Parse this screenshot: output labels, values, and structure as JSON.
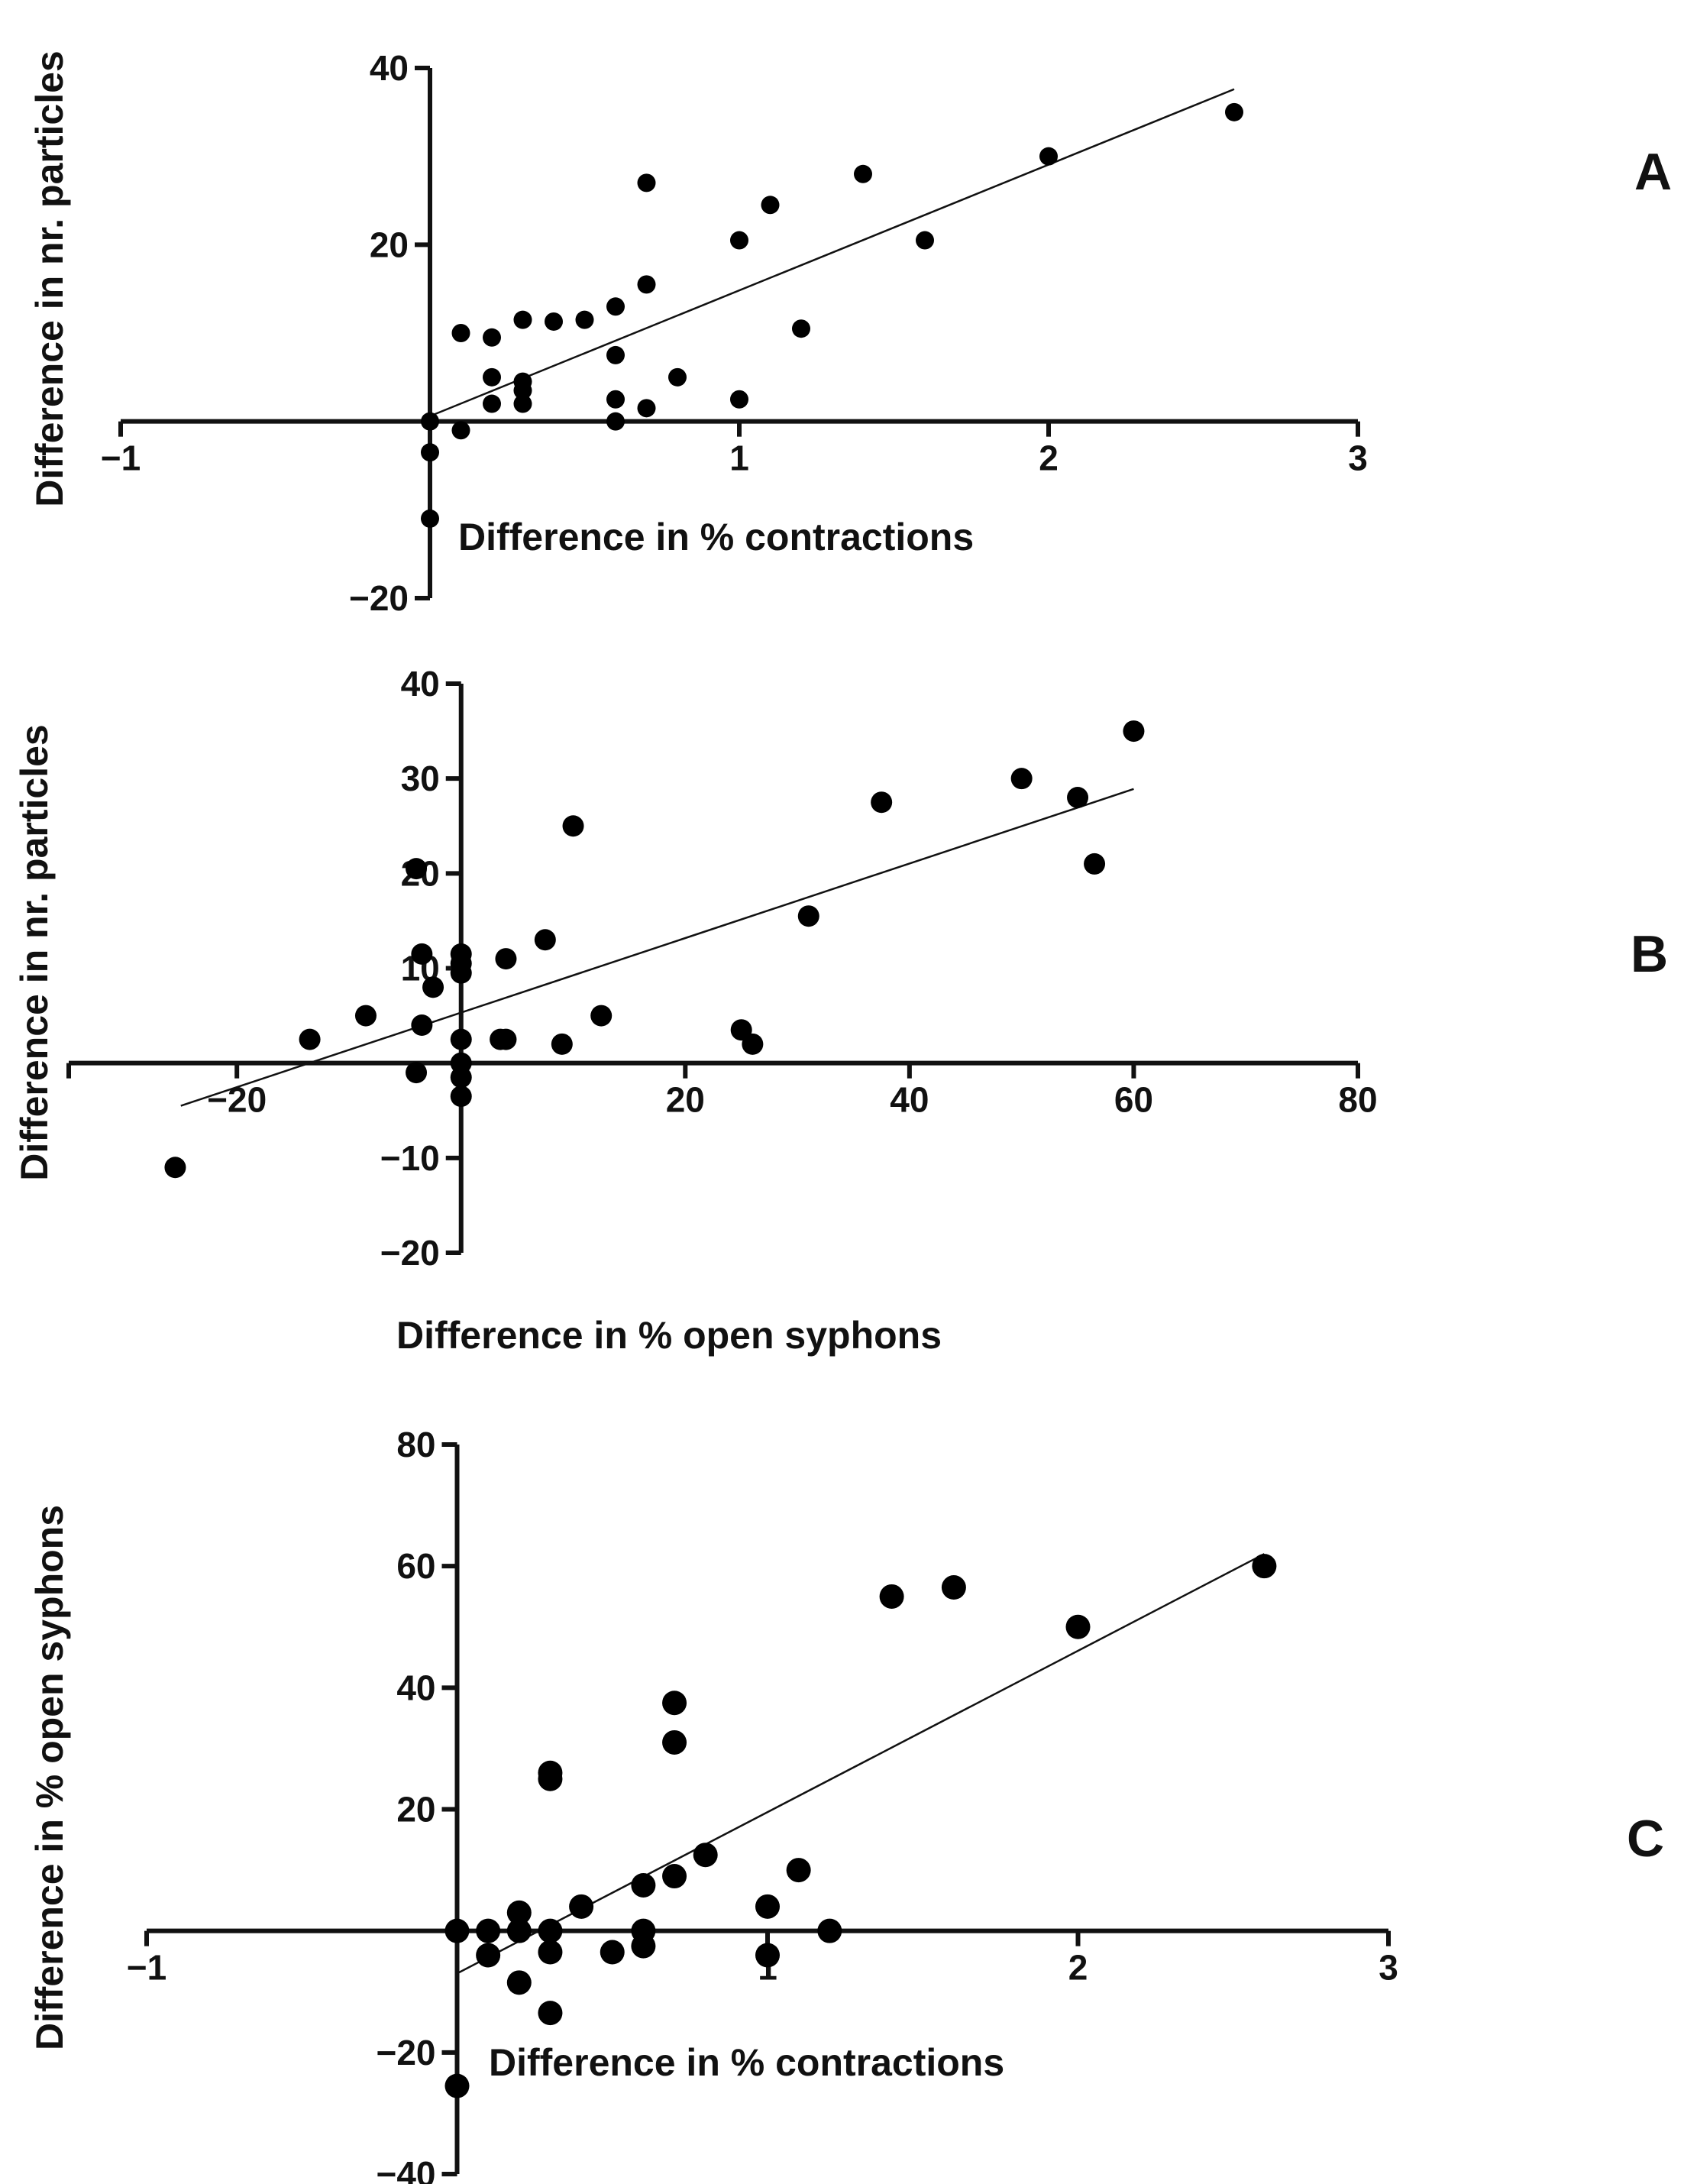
{
  "chart_data": [
    {
      "panel": "A",
      "type": "scatter",
      "xlabel": "Difference in % contractions",
      "ylabel": "Difference in nr. particles",
      "xlim": [
        -1,
        3
      ],
      "ylim": [
        -20,
        40
      ],
      "xticks": [
        -1,
        1,
        2,
        3
      ],
      "yticks": [
        -20,
        20,
        40
      ],
      "xtick_labels": [
        "−1",
        "1",
        "2",
        "3"
      ],
      "ytick_labels": [
        "−20",
        "20",
        "40"
      ],
      "points": [
        [
          0,
          0
        ],
        [
          0,
          -3.5
        ],
        [
          0,
          -11
        ],
        [
          0.1,
          10
        ],
        [
          0.1,
          -1
        ],
        [
          0.2,
          9.5
        ],
        [
          0.2,
          5
        ],
        [
          0.2,
          2
        ],
        [
          0.3,
          11.5
        ],
        [
          0.3,
          4.5
        ],
        [
          0.3,
          3.5
        ],
        [
          0.3,
          2
        ],
        [
          0.4,
          11.3
        ],
        [
          0.5,
          11.5
        ],
        [
          0.6,
          13
        ],
        [
          0.6,
          7.5
        ],
        [
          0.6,
          2.5
        ],
        [
          0.6,
          0
        ],
        [
          0.7,
          27
        ],
        [
          0.7,
          15.5
        ],
        [
          0.7,
          1.5
        ],
        [
          0.8,
          5
        ],
        [
          1.0,
          20.5
        ],
        [
          1.0,
          2.5
        ],
        [
          1.1,
          24.5
        ],
        [
          1.2,
          10.5
        ],
        [
          1.4,
          28
        ],
        [
          1.6,
          20.5
        ],
        [
          2.0,
          30
        ],
        [
          2.6,
          35
        ]
      ],
      "fit": {
        "x": [
          0,
          2.6
        ],
        "y": [
          0.6,
          37.6
        ]
      }
    },
    {
      "panel": "B",
      "type": "scatter",
      "xlabel": "Difference in % open syphons",
      "ylabel": "Difference in nr. particles",
      "xlim": [
        -35,
        80
      ],
      "ylim": [
        -20,
        40
      ],
      "xticks": [
        -20,
        20,
        40,
        60,
        80
      ],
      "yticks": [
        -20,
        -10,
        10,
        20,
        30,
        40
      ],
      "xtick_labels": [
        "−20",
        "20",
        "40",
        "60",
        "80"
      ],
      "ytick_labels": [
        "−20",
        "−10",
        "10",
        "20",
        "30",
        "40"
      ],
      "points": [
        [
          -25.5,
          -11
        ],
        [
          -13.5,
          2.5
        ],
        [
          -8.5,
          5
        ],
        [
          -4,
          20.5
        ],
        [
          -4,
          -1
        ],
        [
          -3.5,
          11.5
        ],
        [
          -3.5,
          4
        ],
        [
          -2.5,
          8
        ],
        [
          0,
          11.5
        ],
        [
          0,
          10.5
        ],
        [
          0,
          9.5
        ],
        [
          0,
          2.5
        ],
        [
          0,
          0
        ],
        [
          0,
          -1.5
        ],
        [
          0,
          -3.5
        ],
        [
          3.5,
          2.5
        ],
        [
          4,
          2.5
        ],
        [
          4,
          11
        ],
        [
          7.5,
          13
        ],
        [
          9,
          2
        ],
        [
          10,
          25
        ],
        [
          12.5,
          5
        ],
        [
          25,
          3.5
        ],
        [
          26,
          2
        ],
        [
          31,
          15.5
        ],
        [
          37.5,
          27.5
        ],
        [
          50,
          30
        ],
        [
          55,
          28
        ],
        [
          56.5,
          21
        ],
        [
          60,
          35
        ]
      ],
      "fit": {
        "x": [
          -25,
          60
        ],
        "y": [
          -4.5,
          28.9
        ]
      }
    },
    {
      "panel": "C",
      "type": "scatter",
      "xlabel": "Difference in % contractions",
      "ylabel": "Difference in % open syphons",
      "xlim": [
        -1,
        3
      ],
      "ylim": [
        -40,
        80
      ],
      "xticks": [
        -1,
        1,
        2,
        3
      ],
      "yticks": [
        -40,
        -20,
        20,
        40,
        60,
        80
      ],
      "xtick_labels": [
        "−1",
        "1",
        "2",
        "3"
      ],
      "ytick_labels": [
        "−40",
        "−20",
        "20",
        "40",
        "60",
        "80"
      ],
      "points": [
        [
          0,
          0
        ],
        [
          0,
          -25.5
        ],
        [
          0.1,
          0
        ],
        [
          0.1,
          -4
        ],
        [
          0.2,
          3
        ],
        [
          0.2,
          0
        ],
        [
          0.2,
          -8.5
        ],
        [
          0.3,
          25
        ],
        [
          0.3,
          26
        ],
        [
          0.3,
          0
        ],
        [
          0.3,
          -3.5
        ],
        [
          0.3,
          -13.5
        ],
        [
          0.4,
          4
        ],
        [
          0.5,
          -3.5
        ],
        [
          0.6,
          7.5
        ],
        [
          0.6,
          0
        ],
        [
          0.6,
          -2.5
        ],
        [
          0.7,
          37.5
        ],
        [
          0.7,
          31
        ],
        [
          0.7,
          9
        ],
        [
          0.8,
          12.5
        ],
        [
          1.0,
          4
        ],
        [
          1.0,
          -4
        ],
        [
          1.1,
          10
        ],
        [
          1.2,
          0
        ],
        [
          1.4,
          55
        ],
        [
          1.6,
          56.5
        ],
        [
          2.0,
          50
        ],
        [
          2.6,
          60
        ]
      ],
      "fit": {
        "x": [
          0,
          2.6
        ],
        "y": [
          -7,
          62
        ]
      }
    }
  ],
  "panel_labels": [
    "A",
    "B",
    "C"
  ]
}
